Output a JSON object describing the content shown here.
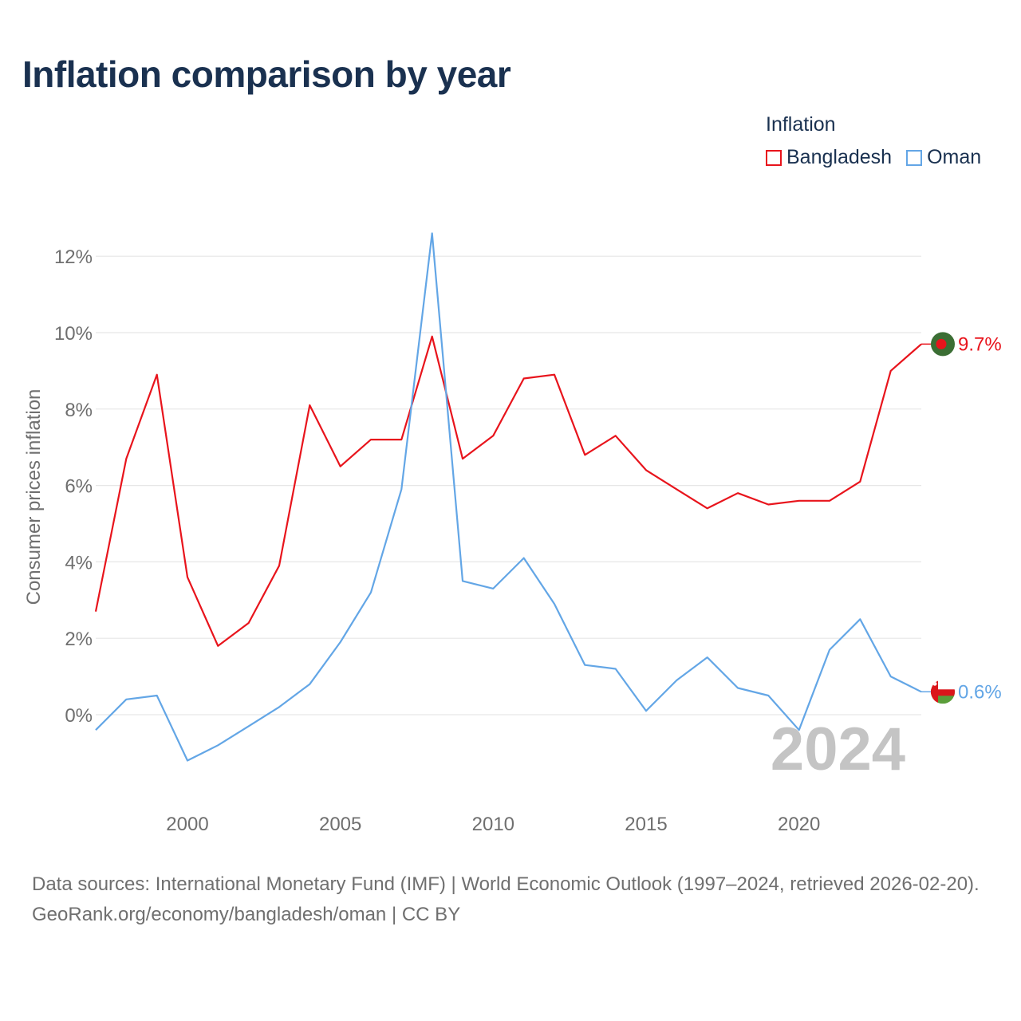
{
  "title": "Inflation comparison by year",
  "legend": {
    "title": "Inflation",
    "items": [
      {
        "label": "Bangladesh",
        "color": "#e8141c"
      },
      {
        "label": "Oman",
        "color": "#63a6e6"
      }
    ]
  },
  "watermark_year": "2024",
  "footer": {
    "sources": "Data sources: International Monetary Fund (IMF) | World Economic Outlook (1997–2024, retrieved 2026-02-20).",
    "attribution": "GeoRank.org/economy/bangladesh/oman | CC BY"
  },
  "chart_data": {
    "type": "line",
    "title": "Inflation comparison by year",
    "xlabel": "",
    "ylabel": "Consumer prices inflation",
    "xlim": [
      1997,
      2024
    ],
    "ylim": [
      -2,
      13
    ],
    "x_ticks": [
      2000,
      2005,
      2010,
      2015,
      2020
    ],
    "y_ticks": [
      0,
      2,
      4,
      6,
      8,
      10,
      12
    ],
    "y_tick_labels": [
      "0%",
      "2%",
      "4%",
      "6%",
      "8%",
      "10%",
      "12%"
    ],
    "grid": true,
    "legend_position": "top-right",
    "x": [
      1997,
      1998,
      1999,
      2000,
      2001,
      2002,
      2003,
      2004,
      2005,
      2006,
      2007,
      2008,
      2009,
      2010,
      2011,
      2012,
      2013,
      2014,
      2015,
      2016,
      2017,
      2018,
      2019,
      2020,
      2021,
      2022,
      2023,
      2024
    ],
    "series": [
      {
        "name": "Bangladesh",
        "color": "#e8141c",
        "values": [
          2.7,
          6.7,
          8.9,
          3.6,
          1.8,
          2.4,
          3.9,
          8.1,
          6.5,
          7.2,
          7.2,
          9.9,
          6.7,
          7.3,
          8.8,
          8.9,
          6.8,
          7.3,
          6.4,
          5.9,
          5.4,
          5.8,
          5.5,
          5.6,
          5.6,
          6.1,
          9.0,
          9.7
        ],
        "end_label": "9.7%"
      },
      {
        "name": "Oman",
        "color": "#63a6e6",
        "values": [
          -0.4,
          0.4,
          0.5,
          -1.2,
          -0.8,
          -0.3,
          0.2,
          0.8,
          1.9,
          3.2,
          5.9,
          12.6,
          3.5,
          3.3,
          4.1,
          2.9,
          1.3,
          1.2,
          0.1,
          0.9,
          1.5,
          0.7,
          0.5,
          -0.4,
          1.7,
          2.5,
          1.0,
          0.6
        ],
        "end_label": "0.6%"
      }
    ]
  }
}
